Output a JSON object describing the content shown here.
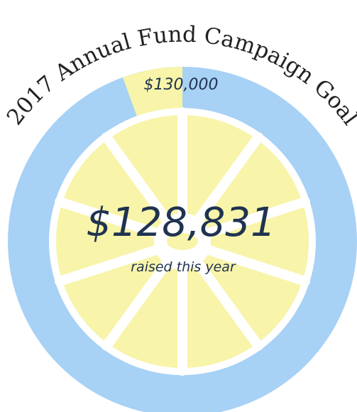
{
  "title": "2017 Annual Fund Campaign Goal",
  "goal": "$130,000",
  "raised": "$128,831",
  "raised_caption": "raised this year"
}
